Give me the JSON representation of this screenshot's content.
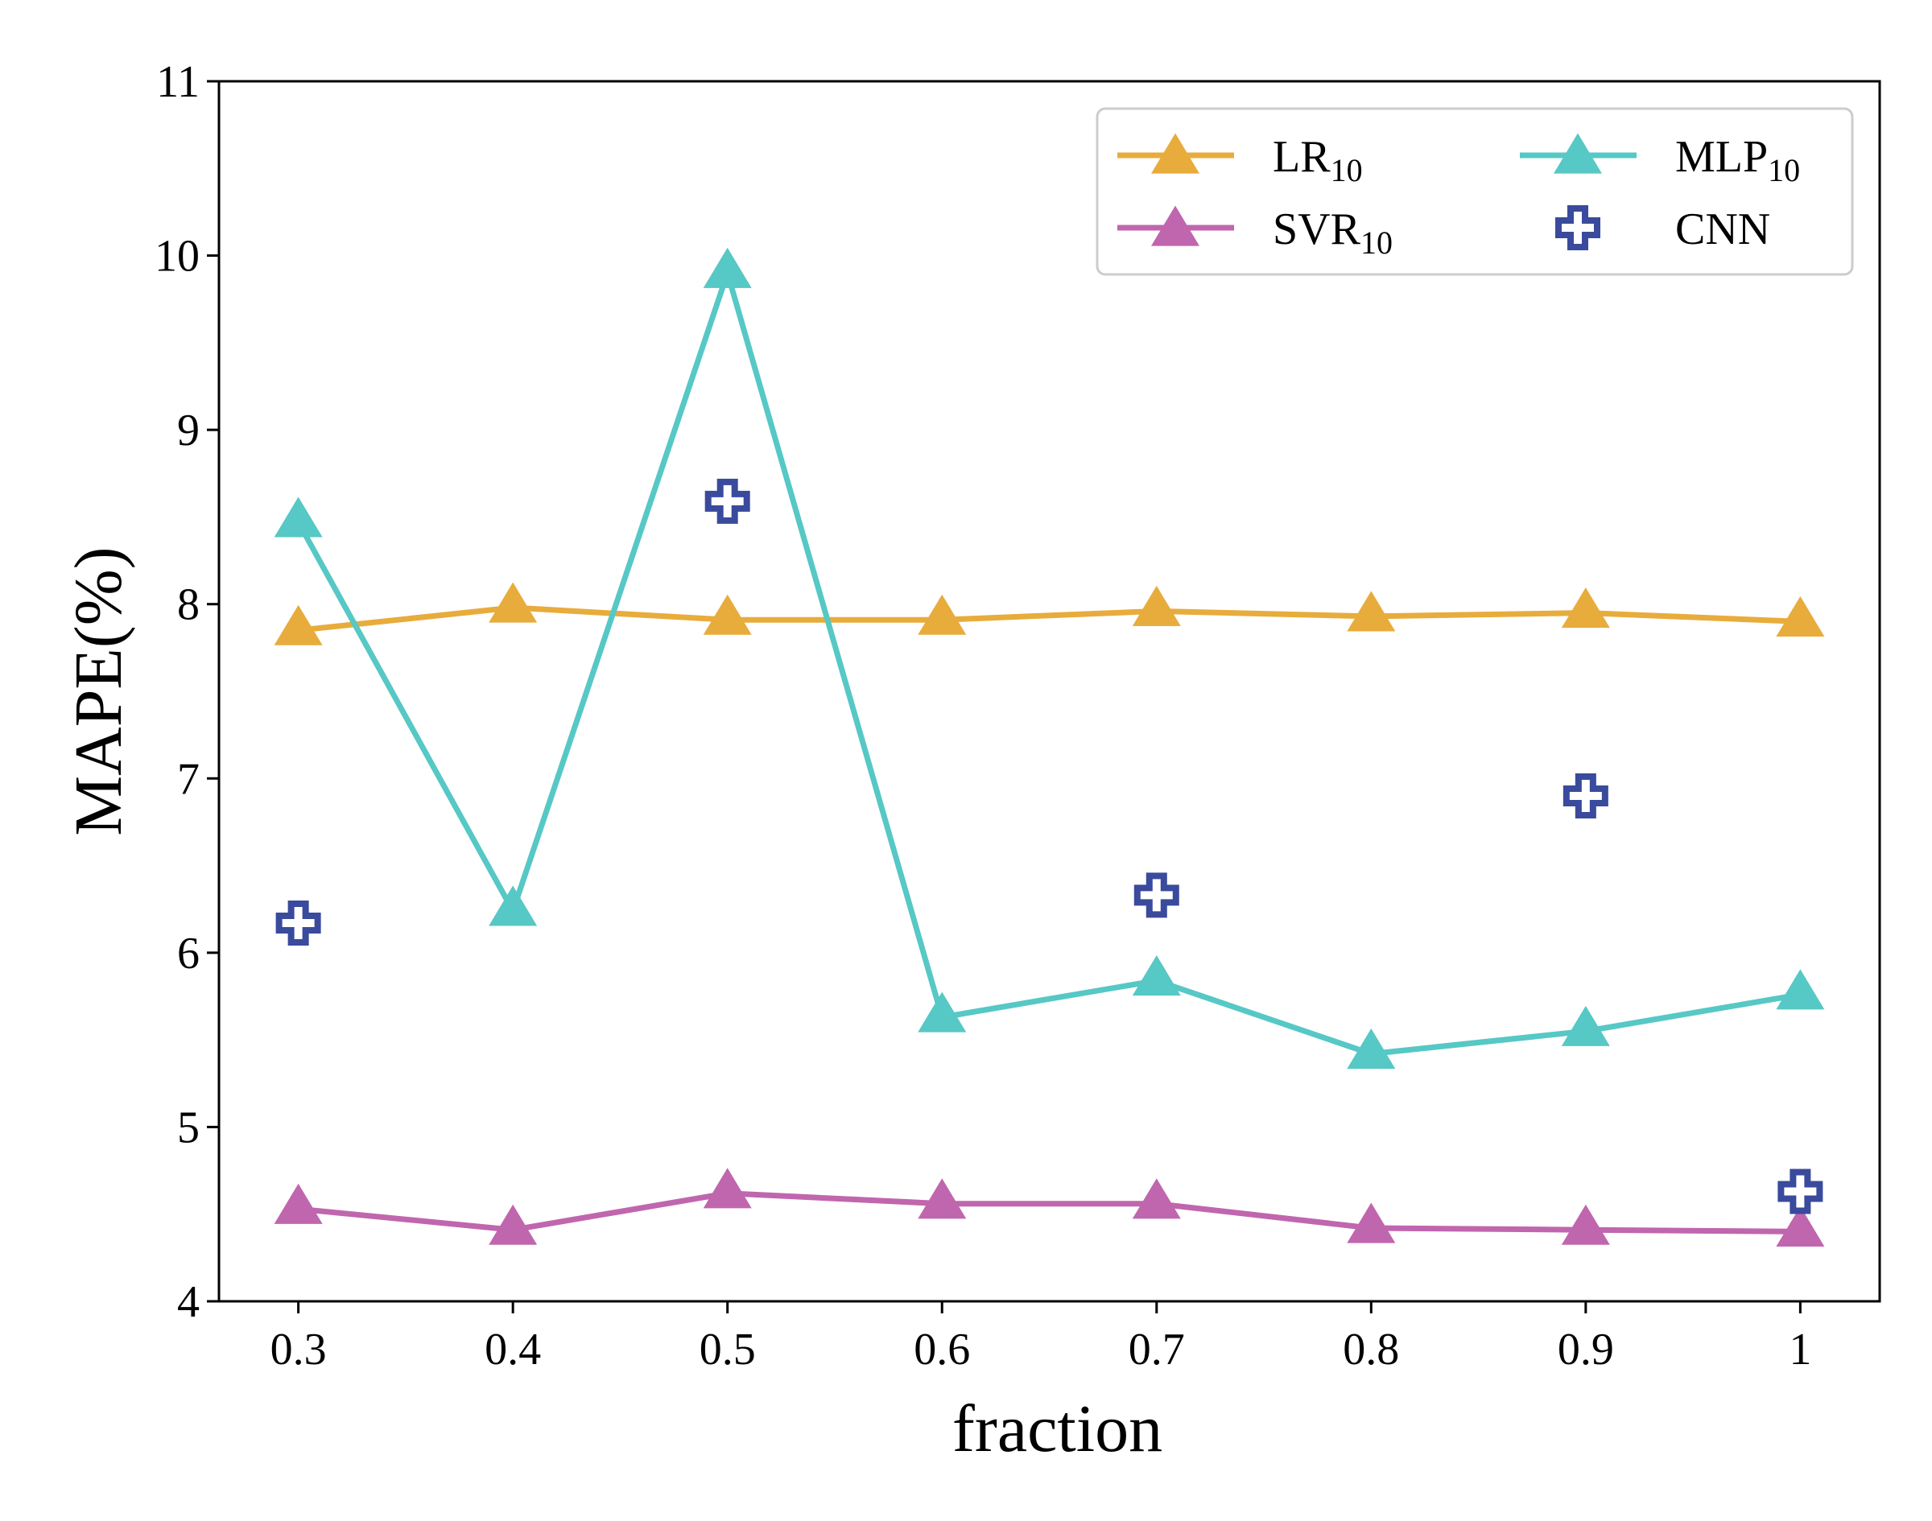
{
  "chart_data": {
    "type": "line",
    "xlabel": "fraction",
    "ylabel": "MAPE(%)",
    "x": [
      0.3,
      0.4,
      0.5,
      0.6,
      0.7,
      0.8,
      0.9,
      1.0
    ],
    "x_tick_labels": [
      "0.3",
      "0.4",
      "0.5",
      "0.6",
      "0.7",
      "0.8",
      "0.9",
      "1"
    ],
    "xlim": [
      0.263,
      1.037
    ],
    "ylim": [
      4,
      11
    ],
    "y_ticks": [
      4,
      5,
      6,
      7,
      8,
      9,
      10,
      11
    ],
    "y_tick_labels": [
      "4",
      "5",
      "6",
      "7",
      "8",
      "9",
      "10",
      "11"
    ],
    "grid": false,
    "legend_position": "top-right",
    "series": [
      {
        "name": "LR",
        "subscript": "10",
        "color": "#E8AC3C",
        "marker": "triangle",
        "line": true,
        "values": [
          7.85,
          7.98,
          7.91,
          7.91,
          7.96,
          7.93,
          7.95,
          7.9
        ]
      },
      {
        "name": "SVR",
        "subscript": "10",
        "color": "#C066AE",
        "marker": "triangle",
        "line": true,
        "values": [
          4.53,
          4.41,
          4.62,
          4.56,
          4.56,
          4.42,
          4.41,
          4.4
        ]
      },
      {
        "name": "MLP",
        "subscript": "10",
        "color": "#56C8C5",
        "marker": "triangle",
        "line": true,
        "values": [
          8.47,
          6.24,
          9.9,
          5.63,
          5.84,
          5.42,
          5.55,
          5.76
        ]
      },
      {
        "name": "CNN",
        "subscript": "",
        "color": "#3A4A9C",
        "marker": "plus",
        "line": false,
        "values": [
          6.17,
          null,
          8.59,
          null,
          6.33,
          null,
          6.9,
          4.63
        ]
      }
    ]
  }
}
